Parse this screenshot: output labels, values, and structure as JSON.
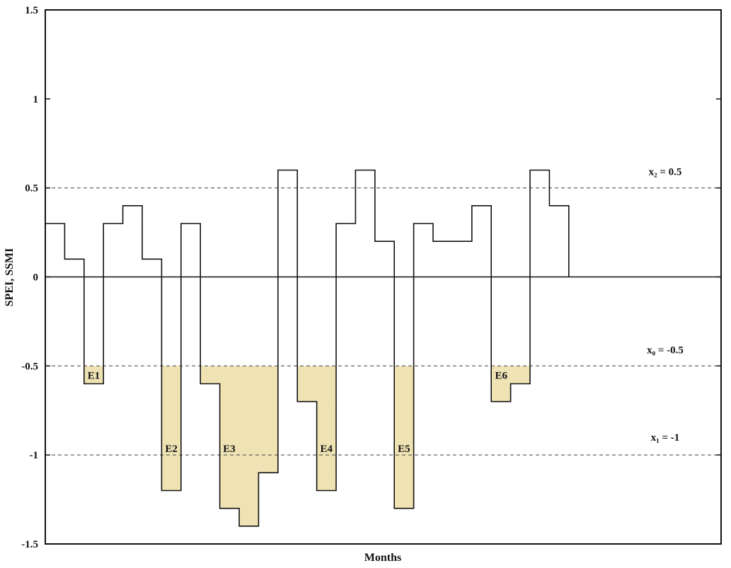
{
  "chart_data": {
    "type": "line",
    "title": "",
    "xlabel": "Months",
    "ylabel": "SPEI, SSMI",
    "ylim": [
      -1.5,
      1.5
    ],
    "yticks": [
      "1.5",
      "1",
      "0.5",
      "0",
      "-0.5",
      "-1",
      "-1.5"
    ],
    "ytick_values": [
      1.5,
      1,
      0.5,
      0,
      -0.5,
      -1,
      -1.5
    ],
    "x_months": [
      1,
      2,
      3,
      4,
      5,
      6,
      7,
      8,
      9,
      10,
      11,
      12,
      13,
      14,
      15,
      16,
      17,
      18,
      19,
      20,
      21,
      22,
      23,
      24,
      25,
      26,
      27
    ],
    "values": [
      0.3,
      0.1,
      -0.6,
      0.3,
      0.4,
      0.1,
      -1.2,
      0.3,
      -0.6,
      -1.3,
      -1.4,
      -1.1,
      0.6,
      -0.7,
      -1.2,
      0.3,
      0.6,
      0.2,
      -1.3,
      0.3,
      0.2,
      0.2,
      0.4,
      -0.7,
      -0.6,
      0.6,
      0.4
    ],
    "zero_line": 0,
    "grid": false,
    "thresholds": [
      {
        "label": "x₂ = 0.5",
        "value": 0.5
      },
      {
        "label": "x₀ = -0.5",
        "value": -0.5
      },
      {
        "label": "x₁ = -1",
        "value": -1
      }
    ],
    "events": [
      {
        "label": "E1",
        "start_month": 3,
        "end_month": 3
      },
      {
        "label": "E2",
        "start_month": 7,
        "end_month": 7
      },
      {
        "label": "E3",
        "start_month": 9,
        "end_month": 12
      },
      {
        "label": "E4",
        "start_month": 14,
        "end_month": 15
      },
      {
        "label": "E5",
        "start_month": 19,
        "end_month": 19
      },
      {
        "label": "E6",
        "start_month": 24,
        "end_month": 25
      }
    ],
    "colors": {
      "series": "#111111",
      "event_fill": "#efe3b4",
      "threshold": "#555555"
    }
  }
}
